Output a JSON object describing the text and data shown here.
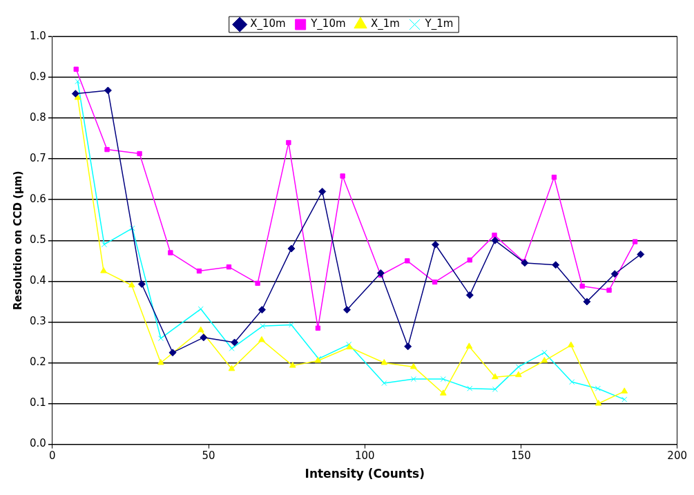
{
  "chart_data": {
    "type": "line",
    "xlabel": "Intensity (Counts)",
    "ylabel": "Resolution on CCD (µm)",
    "xlim": [
      0,
      200
    ],
    "xticks": [
      0,
      50,
      100,
      150,
      200
    ],
    "ylim": [
      0,
      1
    ],
    "yticks": [
      {
        "value": 0,
        "label": "0.0"
      },
      0.1,
      0.2,
      0.3,
      0.4,
      0.5,
      0.6,
      0.7,
      0.8,
      0.9,
      {
        "value": 1,
        "label": "1.0"
      }
    ],
    "grid": "y",
    "legend": "top",
    "line_style": "solid",
    "series": [
      {
        "name": "X_10m",
        "color": "#000080",
        "marker": "diamond",
        "x": [
          7.4,
          17.8,
          28.6,
          38.5,
          48.4,
          58.3,
          67.1,
          76.5,
          86.4,
          94.3,
          105.1,
          113.8,
          122.6,
          133.6,
          141.7,
          151.2,
          161.1,
          171.1,
          180.0,
          188.3
        ],
        "values": [
          0.86,
          0.868,
          0.393,
          0.225,
          0.262,
          0.25,
          0.33,
          0.48,
          0.62,
          0.33,
          0.42,
          0.24,
          0.49,
          0.366,
          0.5,
          0.445,
          0.44,
          0.35,
          0.418,
          0.466
        ]
      },
      {
        "name": "Y_10m",
        "color": "#ff00ff",
        "marker": "square",
        "x": [
          7.6,
          17.5,
          27.9,
          37.8,
          47.0,
          56.5,
          65.7,
          75.6,
          85.0,
          92.9,
          105.1,
          113.6,
          122.4,
          133.6,
          141.5,
          150.9,
          160.6,
          169.6,
          178.2,
          186.5
        ],
        "values": [
          0.92,
          0.723,
          0.713,
          0.47,
          0.425,
          0.435,
          0.395,
          0.74,
          0.285,
          0.658,
          0.415,
          0.45,
          0.398,
          0.452,
          0.513,
          0.448,
          0.655,
          0.388,
          0.378,
          0.497
        ]
      },
      {
        "name": "X_1m",
        "color": "#ffff00",
        "marker": "triangle",
        "x": [
          8.1,
          16.4,
          25.4,
          34.7,
          47.5,
          57.4,
          67.0,
          76.9,
          85.0,
          95.1,
          106.2,
          115.6,
          125.1,
          133.4,
          141.7,
          149.2,
          157.5,
          166.0,
          174.8,
          183.1
        ],
        "values": [
          0.85,
          0.425,
          0.39,
          0.2,
          0.28,
          0.185,
          0.256,
          0.193,
          0.205,
          0.238,
          0.2,
          0.19,
          0.125,
          0.24,
          0.165,
          0.17,
          0.205,
          0.243,
          0.1,
          0.13
        ]
      },
      {
        "name": "Y_1m",
        "color": "#00ffff",
        "marker": "cross",
        "x": [
          8.1,
          16.6,
          25.6,
          34.7,
          47.5,
          57.4,
          67.3,
          76.5,
          85.2,
          94.9,
          106.2,
          115.6,
          125.1,
          133.6,
          141.7,
          149.2,
          157.5,
          166.3,
          174.6,
          183.1
        ],
        "values": [
          0.89,
          0.49,
          0.53,
          0.26,
          0.332,
          0.235,
          0.29,
          0.293,
          0.21,
          0.245,
          0.15,
          0.16,
          0.16,
          0.137,
          0.135,
          0.19,
          0.225,
          0.153,
          0.137,
          0.11
        ]
      }
    ]
  }
}
